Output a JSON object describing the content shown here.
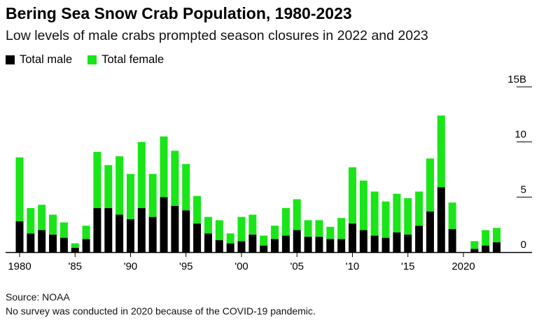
{
  "title": "Bering Sea Snow Crab Population, 1980-2023",
  "subtitle": "Low levels of male crabs prompted season closures in 2022 and 2023",
  "source": "Source: NOAA",
  "note": "No survey was conducted in 2020 because of the COVID-19 pandemic.",
  "colors": {
    "male": "#000000",
    "female": "#19e519",
    "axis": "#000000",
    "grid": "#000000"
  },
  "chart_data": {
    "type": "bar",
    "stacked": true,
    "title": "Bering Sea Snow Crab Population, 1980-2023",
    "subtitle": "Low levels of male crabs prompted season closures in 2022 and 2023",
    "unit": "B",
    "ylim": [
      0,
      15
    ],
    "y_ticks": [
      0,
      5,
      10,
      15
    ],
    "y_tick_labels": [
      "0",
      "5",
      "10",
      "15B"
    ],
    "y_axis_position": "right",
    "x_tick_values": [
      1980,
      1985,
      1990,
      1995,
      2000,
      2005,
      2010,
      2015,
      2020
    ],
    "x_tick_labels": [
      "1980",
      "'85",
      "'90",
      "'95",
      "'00",
      "'05",
      "'10",
      "'15",
      "2020"
    ],
    "legend_placement": "top-left",
    "categories": [
      1980,
      1981,
      1982,
      1983,
      1984,
      1985,
      1986,
      1987,
      1988,
      1989,
      1990,
      1991,
      1992,
      1993,
      1994,
      1995,
      1996,
      1997,
      1998,
      1999,
      2000,
      2001,
      2002,
      2003,
      2004,
      2005,
      2006,
      2007,
      2008,
      2009,
      2010,
      2011,
      2012,
      2013,
      2014,
      2015,
      2016,
      2017,
      2018,
      2019,
      2020,
      2021,
      2022,
      2023
    ],
    "series": [
      {
        "name": "Total male",
        "color": "#000000",
        "values": [
          2.8,
          1.7,
          2.0,
          1.6,
          1.3,
          0.4,
          1.2,
          4.0,
          4.0,
          3.4,
          3.0,
          4.0,
          3.2,
          5.0,
          4.2,
          3.8,
          2.6,
          1.7,
          1.1,
          0.8,
          1.0,
          1.6,
          0.6,
          1.2,
          1.5,
          2.0,
          1.4,
          1.4,
          1.2,
          1.2,
          2.6,
          2.0,
          1.5,
          1.3,
          1.8,
          1.6,
          2.4,
          3.7,
          5.9,
          2.1,
          0,
          0.3,
          0.6,
          0.9
        ]
      },
      {
        "name": "Total female",
        "color": "#19e519",
        "values": [
          5.8,
          2.3,
          2.3,
          1.8,
          1.4,
          0.4,
          1.2,
          5.1,
          3.9,
          5.3,
          4.1,
          6.0,
          3.9,
          5.5,
          5.0,
          4.2,
          2.5,
          1.5,
          1.8,
          0.9,
          2.2,
          1.8,
          0.9,
          1.2,
          2.5,
          2.8,
          1.5,
          1.5,
          1.1,
          1.9,
          5.1,
          4.5,
          4.0,
          3.3,
          3.5,
          3.3,
          3.1,
          4.8,
          6.5,
          2.4,
          0,
          0.7,
          1.4,
          1.3
        ]
      }
    ]
  }
}
